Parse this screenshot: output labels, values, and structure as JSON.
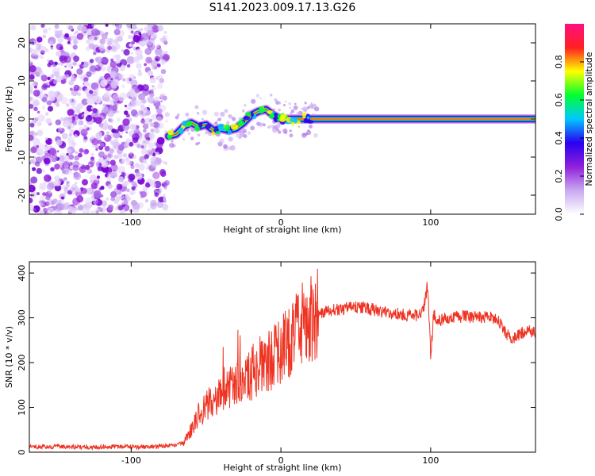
{
  "figure": {
    "title": "S141.2023.009.17.13.G26"
  },
  "chart_data": [
    {
      "type": "heatmap",
      "xlabel": "Height of straight line (km)",
      "ylabel": "Frequency (Hz)",
      "xlim": [
        -168,
        170
      ],
      "ylim": [
        -25,
        25
      ],
      "x_ticks": [
        -100,
        0,
        100
      ],
      "y_ticks": [
        20,
        10,
        0,
        -10,
        -20
      ],
      "noise_region": {
        "x_range": [
          -168,
          -76
        ],
        "y_range": [
          -25,
          25
        ]
      },
      "signal_trace": {
        "x": [
          -75,
          -70,
          -65,
          -60,
          -55,
          -50,
          -45,
          -40,
          -35,
          -30,
          -25,
          -20,
          -15,
          -10,
          -5,
          0,
          5,
          10,
          20,
          40,
          60,
          65,
          80,
          90,
          95,
          110,
          130,
          150,
          170
        ],
        "y": [
          -4.5,
          -4,
          -2,
          -1,
          -2,
          -1.5,
          -3,
          -2.5,
          -3,
          -2.5,
          -1,
          1,
          2,
          2.5,
          1,
          0,
          0,
          0,
          0,
          0,
          0,
          0,
          0,
          0,
          0,
          0,
          0,
          0,
          0
        ]
      },
      "colorbar": {
        "label": "Normalized spectral amplitude",
        "range": [
          0,
          1
        ],
        "ticks": [
          0.0,
          0.2,
          0.4,
          0.6,
          0.8
        ],
        "colors": [
          "#ffffff",
          "#c9a8f0",
          "#8f1fdb",
          "#2a00f0",
          "#00c8ff",
          "#00ff30",
          "#ffff00",
          "#ff2020",
          "#ff1080"
        ]
      }
    },
    {
      "type": "line",
      "xlabel": "Height of straight line (km)",
      "ylabel": "SNR (10 * v/v)",
      "xlim": [
        -168,
        170
      ],
      "ylim": [
        0,
        425
      ],
      "x_ticks": [
        -100,
        0,
        100
      ],
      "y_ticks": [
        0,
        100,
        200,
        300,
        400
      ],
      "color": "#ee3322",
      "series": [
        {
          "x": [
            -168,
            -150,
            -130,
            -110,
            -90,
            -75,
            -65,
            -60,
            -55,
            -50,
            -45,
            -40,
            -35,
            -30,
            -25,
            -20,
            -15,
            -10,
            -5,
            0,
            5,
            10,
            15,
            20,
            25,
            30,
            40,
            50,
            60,
            70,
            80,
            90,
            95,
            98,
            100,
            102,
            105,
            110,
            120,
            130,
            140,
            145,
            150,
            155,
            160,
            165,
            170
          ],
          "y": [
            12,
            12,
            11,
            12,
            12,
            14,
            20,
            50,
            85,
            100,
            120,
            140,
            150,
            150,
            160,
            175,
            190,
            200,
            210,
            225,
            245,
            262,
            285,
            300,
            310,
            315,
            320,
            325,
            320,
            310,
            308,
            305,
            315,
            375,
            215,
            310,
            290,
            300,
            302,
            303,
            300,
            295,
            265,
            255,
            265,
            270,
            268
          ]
        }
      ]
    }
  ]
}
